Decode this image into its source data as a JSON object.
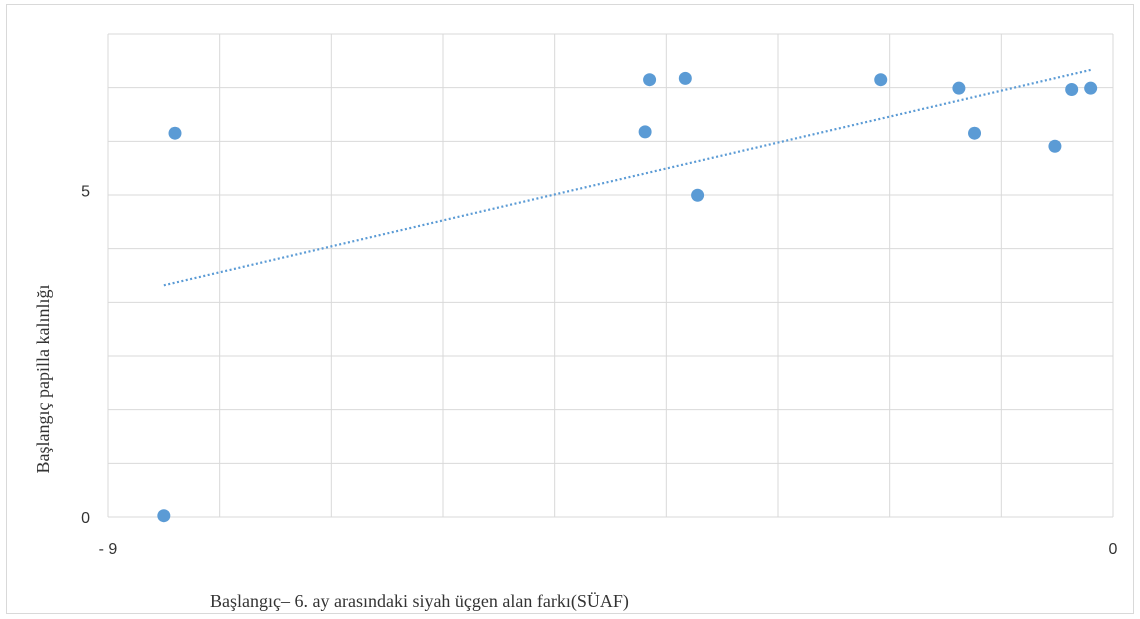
{
  "chart_data": {
    "type": "scatter",
    "title": "",
    "xlabel": "Başlangıç– 6. ay arasındaki siyah üçgen alan farkı(SÜAF)",
    "ylabel": "Başlangıç papilla kalınlığı",
    "xlim": [
      -9,
      0
    ],
    "ylim": [
      0,
      7.4
    ],
    "x_tick_labels": [
      "- 9",
      "0"
    ],
    "y_tick_labels": [
      "5",
      "0"
    ],
    "x_ticks": [
      -9,
      0
    ],
    "y_ticks": [
      5,
      0
    ],
    "grid": true,
    "legend": "none",
    "series": [
      {
        "x": [
          -8.5,
          -8.4,
          -4.19,
          -4.15,
          -3.83,
          -3.72,
          -2.08,
          -1.38,
          -1.24,
          -0.52,
          -0.37,
          -0.2
        ],
        "y": [
          0.02,
          5.88,
          5.9,
          6.7,
          6.72,
          4.93,
          6.7,
          6.57,
          5.88,
          5.68,
          6.55,
          6.57
        ]
      }
    ],
    "trendline": {
      "type": "linear",
      "x": [
        -8.5,
        -0.2
      ],
      "y": [
        3.55,
        6.85
      ]
    },
    "colors": {
      "point": "#5b9bd5",
      "trendline": "#5b9bd5",
      "grid": "#d9d9d9"
    }
  }
}
